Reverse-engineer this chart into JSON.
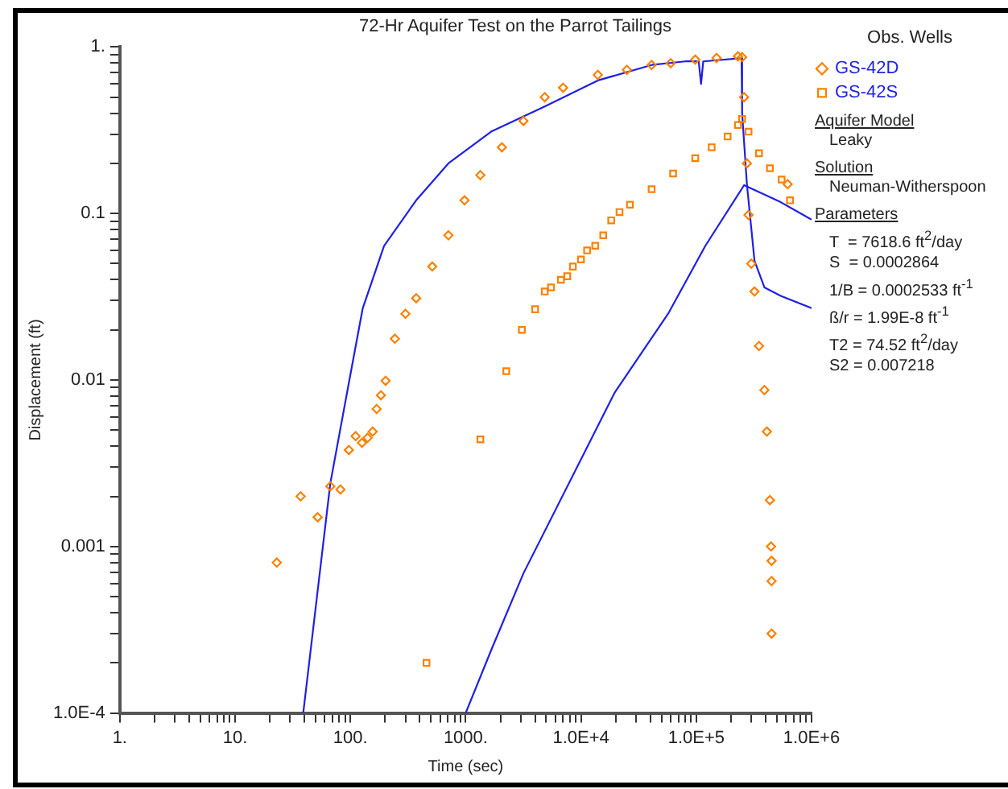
{
  "chart_data": {
    "type": "scatter",
    "title": "72-Hr Aquifer Test on the Parrot Tailings",
    "xlabel": "Time (sec)",
    "ylabel": "Displacement (ft)",
    "legend_title": "Obs. Wells",
    "legend": "right",
    "log": "xy",
    "grid": false,
    "xlim": [
      1,
      1000000
    ],
    "ylim": [
      0.0001,
      1
    ],
    "xticks": [
      {
        "value": 1,
        "label": "1."
      },
      {
        "value": 2,
        "label": null
      },
      {
        "value": 3,
        "label": null
      },
      {
        "value": 4,
        "label": null
      },
      {
        "value": 5,
        "label": null
      },
      {
        "value": 6,
        "label": null
      },
      {
        "value": 7,
        "label": null
      },
      {
        "value": 8,
        "label": null
      },
      {
        "value": 9,
        "label": null
      },
      {
        "value": 10,
        "label": "10."
      },
      {
        "value": 20,
        "label": null
      },
      {
        "value": 30,
        "label": null
      },
      {
        "value": 40,
        "label": null
      },
      {
        "value": 50,
        "label": null
      },
      {
        "value": 60,
        "label": null
      },
      {
        "value": 70,
        "label": null
      },
      {
        "value": 80,
        "label": null
      },
      {
        "value": 90,
        "label": null
      },
      {
        "value": 100,
        "label": "100."
      },
      {
        "value": 200,
        "label": null
      },
      {
        "value": 300,
        "label": null
      },
      {
        "value": 400,
        "label": null
      },
      {
        "value": 500,
        "label": null
      },
      {
        "value": 600,
        "label": null
      },
      {
        "value": 700,
        "label": null
      },
      {
        "value": 800,
        "label": null
      },
      {
        "value": 900,
        "label": null
      },
      {
        "value": 1000,
        "label": "1000."
      },
      {
        "value": 2000,
        "label": null
      },
      {
        "value": 3000,
        "label": null
      },
      {
        "value": 4000,
        "label": null
      },
      {
        "value": 5000,
        "label": null
      },
      {
        "value": 6000,
        "label": null
      },
      {
        "value": 7000,
        "label": null
      },
      {
        "value": 8000,
        "label": null
      },
      {
        "value": 9000,
        "label": null
      },
      {
        "value": 10000,
        "label": "1.0E+4"
      },
      {
        "value": 20000,
        "label": null
      },
      {
        "value": 30000,
        "label": null
      },
      {
        "value": 40000,
        "label": null
      },
      {
        "value": 50000,
        "label": null
      },
      {
        "value": 60000,
        "label": null
      },
      {
        "value": 70000,
        "label": null
      },
      {
        "value": 80000,
        "label": null
      },
      {
        "value": 90000,
        "label": null
      },
      {
        "value": 100000,
        "label": "1.0E+5"
      },
      {
        "value": 200000,
        "label": null
      },
      {
        "value": 300000,
        "label": null
      },
      {
        "value": 400000,
        "label": null
      },
      {
        "value": 500000,
        "label": null
      },
      {
        "value": 600000,
        "label": null
      },
      {
        "value": 700000,
        "label": null
      },
      {
        "value": 800000,
        "label": null
      },
      {
        "value": 900000,
        "label": null
      },
      {
        "value": 1000000,
        "label": "1.0E+6"
      }
    ],
    "yticks": [
      {
        "value": 0.0001,
        "label": "1.0E-4"
      },
      {
        "value": 0.0002,
        "label": null
      },
      {
        "value": 0.0003,
        "label": null
      },
      {
        "value": 0.0004,
        "label": null
      },
      {
        "value": 0.0005,
        "label": null
      },
      {
        "value": 0.0006,
        "label": null
      },
      {
        "value": 0.0007,
        "label": null
      },
      {
        "value": 0.0008,
        "label": null
      },
      {
        "value": 0.0009,
        "label": null
      },
      0.001,
      {
        "value": 0.002,
        "label": null
      },
      {
        "value": 0.003,
        "label": null
      },
      {
        "value": 0.004,
        "label": null
      },
      {
        "value": 0.005,
        "label": null
      },
      {
        "value": 0.006,
        "label": null
      },
      {
        "value": 0.007,
        "label": null
      },
      {
        "value": 0.008,
        "label": null
      },
      {
        "value": 0.009,
        "label": null
      },
      0.01,
      {
        "value": 0.02,
        "label": null
      },
      {
        "value": 0.03,
        "label": null
      },
      {
        "value": 0.04,
        "label": null
      },
      {
        "value": 0.05,
        "label": null
      },
      {
        "value": 0.06,
        "label": null
      },
      {
        "value": 0.07,
        "label": null
      },
      {
        "value": 0.08,
        "label": null
      },
      {
        "value": 0.09,
        "label": null
      },
      0.1,
      {
        "value": 0.2,
        "label": null
      },
      {
        "value": 0.3,
        "label": null
      },
      {
        "value": 0.4,
        "label": null
      },
      {
        "value": 0.5,
        "label": null
      },
      {
        "value": 0.6,
        "label": null
      },
      {
        "value": 0.7,
        "label": null
      },
      {
        "value": 0.8,
        "label": null
      },
      {
        "value": 0.9,
        "label": null
      },
      {
        "value": 1,
        "label": "1."
      }
    ],
    "series": [
      {
        "name": "GS-42D",
        "marker": "diamond",
        "color": "#ff8000",
        "x": [
          23,
          37,
          52,
          67,
          82,
          97,
          111,
          126,
          141,
          156,
          169,
          184,
          202,
          243,
          300,
          372,
          513,
          708,
          977,
          1340,
          2060,
          3170,
          4850,
          7000,
          14000,
          25000,
          41000,
          60000,
          98000,
          150000,
          230000,
          250000,
          260000,
          275000,
          284000,
          300000,
          320000,
          350000,
          390000,
          410000,
          435000,
          445000,
          450000,
          450000,
          450000,
          620000
        ],
        "values": [
          0.0008,
          0.002,
          0.0015,
          0.0023,
          0.0022,
          0.0038,
          0.0046,
          0.0042,
          0.0045,
          0.0049,
          0.0067,
          0.0081,
          0.0099,
          0.0177,
          0.025,
          0.031,
          0.048,
          0.074,
          0.12,
          0.17,
          0.25,
          0.36,
          0.5,
          0.57,
          0.68,
          0.73,
          0.78,
          0.8,
          0.84,
          0.86,
          0.88,
          0.87,
          0.5,
          0.2,
          0.098,
          0.05,
          0.034,
          0.016,
          0.0087,
          0.0049,
          0.0019,
          0.001,
          0.00082,
          0.00062,
          0.0003,
          0.15
        ]
      },
      {
        "name": "GS-42S",
        "marker": "square",
        "color": "#ff8000",
        "x": [
          457,
          1340,
          2250,
          3070,
          4000,
          4850,
          5500,
          6700,
          7600,
          8500,
          10000,
          11300,
          13300,
          15600,
          18300,
          21600,
          26600,
          41000,
          63000,
          98000,
          136000,
          187000,
          230000,
          250000,
          284000,
          350000,
          435000,
          550000,
          650000
        ],
        "values": [
          0.0002,
          0.0044,
          0.0113,
          0.02,
          0.0266,
          0.034,
          0.036,
          0.04,
          0.042,
          0.048,
          0.053,
          0.06,
          0.064,
          0.074,
          0.091,
          0.102,
          0.113,
          0.14,
          0.174,
          0.215,
          0.25,
          0.29,
          0.34,
          0.37,
          0.31,
          0.23,
          0.187,
          0.16,
          0.12
        ]
      },
      {
        "type": "line",
        "marker": "none",
        "color": "#1f1fe6",
        "x": [
          39,
          67,
          98,
          128,
          196,
          372,
          708,
          1660,
          4850,
          14000,
          41000,
          80000,
          105000,
          110000,
          115000,
          240000,
          247000,
          250000,
          275000,
          320000,
          390000,
          540000,
          1000000
        ],
        "values": [
          0.0001,
          0.0024,
          0.01,
          0.027,
          0.064,
          0.12,
          0.2,
          0.31,
          0.44,
          0.63,
          0.78,
          0.82,
          0.82,
          0.6,
          0.82,
          0.855,
          0.855,
          0.4,
          0.15,
          0.052,
          0.036,
          0.032,
          0.027
        ]
      },
      {
        "type": "line",
        "marker": "none",
        "color": "#1f1fe6",
        "x": [
          1000,
          1670,
          3170,
          19600,
          57000,
          120000,
          260000,
          540000,
          1000000
        ],
        "values": [
          0.0001,
          0.00024,
          0.00069,
          0.0084,
          0.025,
          0.064,
          0.148,
          0.117,
          0.092
        ]
      }
    ],
    "annotations": [
      "Aquifer Model",
      "Leaky",
      "Solution",
      "Neuman-Witherspoon",
      "Parameters",
      "T  = 7618.6 ft$^{2}$/day",
      "S  = 0.0002864",
      "1/B = 0.0002533 ft$^{-1}$",
      "ß/r = 1.99E-8 ft$^{-1}$",
      "T2 = 74.52 ft$^{2}$/day",
      "S2 = 0.007218"
    ]
  }
}
